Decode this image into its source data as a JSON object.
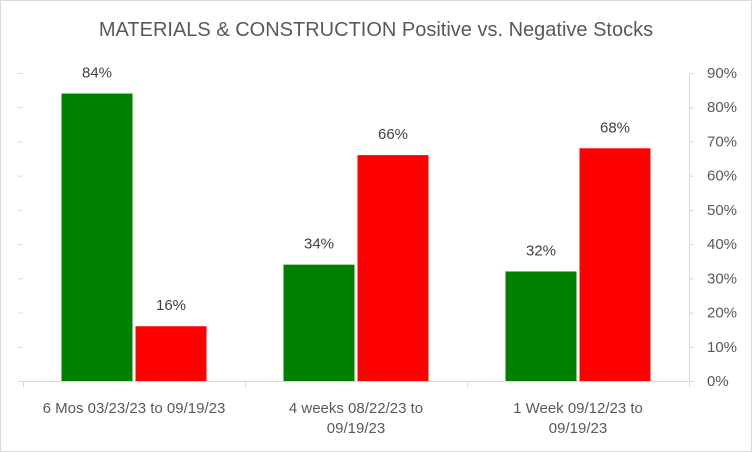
{
  "chart_data": {
    "type": "bar",
    "title": "MATERIALS & CONSTRUCTION Positive vs. Negative Stocks",
    "categories": [
      [
        "6 Mos 03/23/23 to 09/19/23"
      ],
      [
        "4 weeks 08/22/23 to",
        "09/19/23"
      ],
      [
        "1 Week 09/12/23 to",
        "09/19/23"
      ]
    ],
    "series": [
      {
        "name": "Positive",
        "color": "#008000",
        "values": [
          84,
          34,
          32
        ],
        "labels": [
          "84%",
          "34%",
          "32%"
        ]
      },
      {
        "name": "Negative",
        "color": "#ff0000",
        "values": [
          16,
          66,
          68
        ],
        "labels": [
          "16%",
          "66%",
          "68%"
        ]
      }
    ],
    "ylim": [
      0,
      90
    ],
    "yticks": [
      "0%",
      "10%",
      "20%",
      "30%",
      "40%",
      "50%",
      "60%",
      "70%",
      "80%",
      "90%"
    ],
    "axis_side": "right",
    "gridlines": false,
    "legend": "none"
  }
}
